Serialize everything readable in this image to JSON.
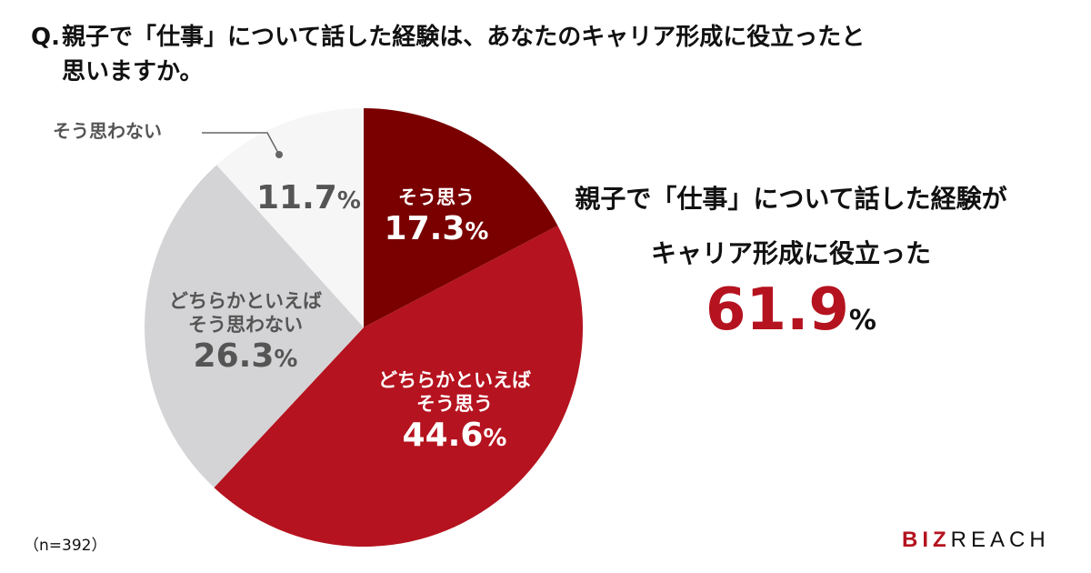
{
  "title": {
    "prefix": "Q.",
    "line1": "親子で「仕事」について話した経験は、あなたのキャリア形成に役立ったと",
    "line2": "思いますか。"
  },
  "colors": {
    "agree": "#7a0000",
    "somewhat_agree": "#b5131f",
    "somewhat_disagree": "#d4d4d6",
    "disagree": "#f6f6f7",
    "accent": "#b5131f",
    "label_gray": "#555555"
  },
  "slices": [
    {
      "label": "そう思う",
      "label_lines": [
        "そう思う"
      ],
      "value": 17.3,
      "value_text": "17.3",
      "color": "#7a0000"
    },
    {
      "label": "どちらかといえばそう思う",
      "label_lines": [
        "どちらかといえば",
        "そう思う"
      ],
      "value": 44.6,
      "value_text": "44.6",
      "color": "#b5131f"
    },
    {
      "label": "どちらかといえばそう思わない",
      "label_lines": [
        "どちらかといえば",
        "そう思わない"
      ],
      "value": 26.3,
      "value_text": "26.3",
      "color": "#d4d4d6"
    },
    {
      "label": "そう思わない",
      "label_lines": [
        "そう思わない"
      ],
      "value": 11.7,
      "value_text": "11.7",
      "color": "#f6f6f7"
    }
  ],
  "percent_sign": "%",
  "summary": {
    "line1": "親子で「仕事」について話した経験が",
    "line2": "キャリア形成に役立った",
    "value": "61.9",
    "percent_sign": "%"
  },
  "sample_size": "（n=392）",
  "logo": {
    "part1": "BIZ",
    "part2": "REACH"
  },
  "chart_data": {
    "type": "pie",
    "title": "Q. 親子で「仕事」について話した経験は、あなたのキャリア形成に役立ったと思いますか。",
    "categories": [
      "そう思う",
      "どちらかといえばそう思う",
      "どちらかといえばそう思わない",
      "そう思わない"
    ],
    "values": [
      17.3,
      44.6,
      26.3,
      11.7
    ],
    "unit": "%",
    "start_angle": "12 o'clock, clockwise",
    "annotation": "親子で「仕事」について話した経験がキャリア形成に役立った 61.9%",
    "n": 392
  }
}
